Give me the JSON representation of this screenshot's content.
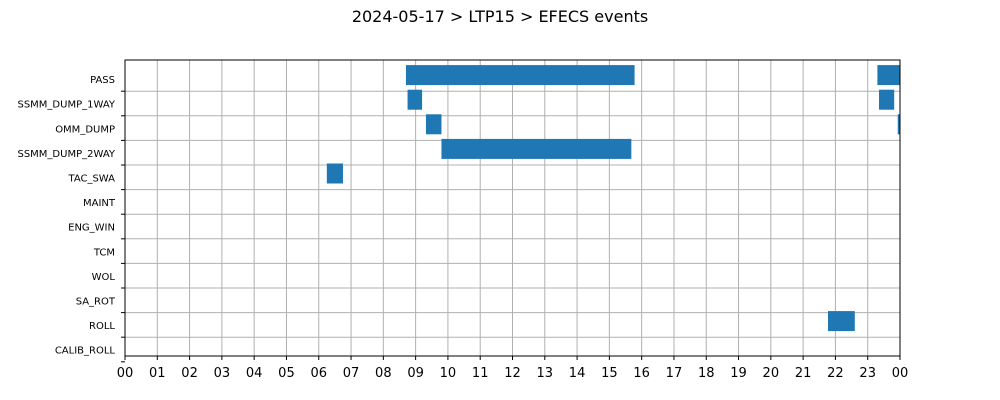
{
  "chart_data": {
    "type": "bar",
    "orientation": "horizontal-timeline",
    "title": "2024-05-17 > LTP15 > EFECS events",
    "xlabel": "",
    "ylabel": "",
    "x_unit": "hour of day",
    "xlim": [
      0,
      24
    ],
    "x_tick_labels": [
      "00",
      "01",
      "02",
      "03",
      "04",
      "05",
      "06",
      "07",
      "08",
      "09",
      "10",
      "11",
      "12",
      "13",
      "14",
      "15",
      "16",
      "17",
      "18",
      "19",
      "20",
      "21",
      "22",
      "23",
      "00"
    ],
    "grid": true,
    "color": "#1f77b4",
    "categories": [
      "PASS",
      "SSMM_DUMP_1WAY",
      "OMM_DUMP",
      "SSMM_DUMP_2WAY",
      "TAC_SWA",
      "MAINT",
      "ENG_WIN",
      "TCM",
      "WOL",
      "SA_ROT",
      "ROLL",
      "CALIB_ROLL"
    ],
    "events": [
      {
        "category": "PASS",
        "start": 8.7,
        "end": 15.78
      },
      {
        "category": "PASS",
        "start": 23.3,
        "end": 24.0
      },
      {
        "category": "SSMM_DUMP_1WAY",
        "start": 8.75,
        "end": 9.2
      },
      {
        "category": "SSMM_DUMP_1WAY",
        "start": 23.35,
        "end": 23.82
      },
      {
        "category": "OMM_DUMP",
        "start": 9.32,
        "end": 9.8
      },
      {
        "category": "OMM_DUMP",
        "start": 23.93,
        "end": 24.0
      },
      {
        "category": "SSMM_DUMP_2WAY",
        "start": 9.8,
        "end": 15.68
      },
      {
        "category": "TAC_SWA",
        "start": 6.25,
        "end": 6.75
      },
      {
        "category": "ROLL",
        "start": 21.77,
        "end": 22.6
      }
    ]
  }
}
